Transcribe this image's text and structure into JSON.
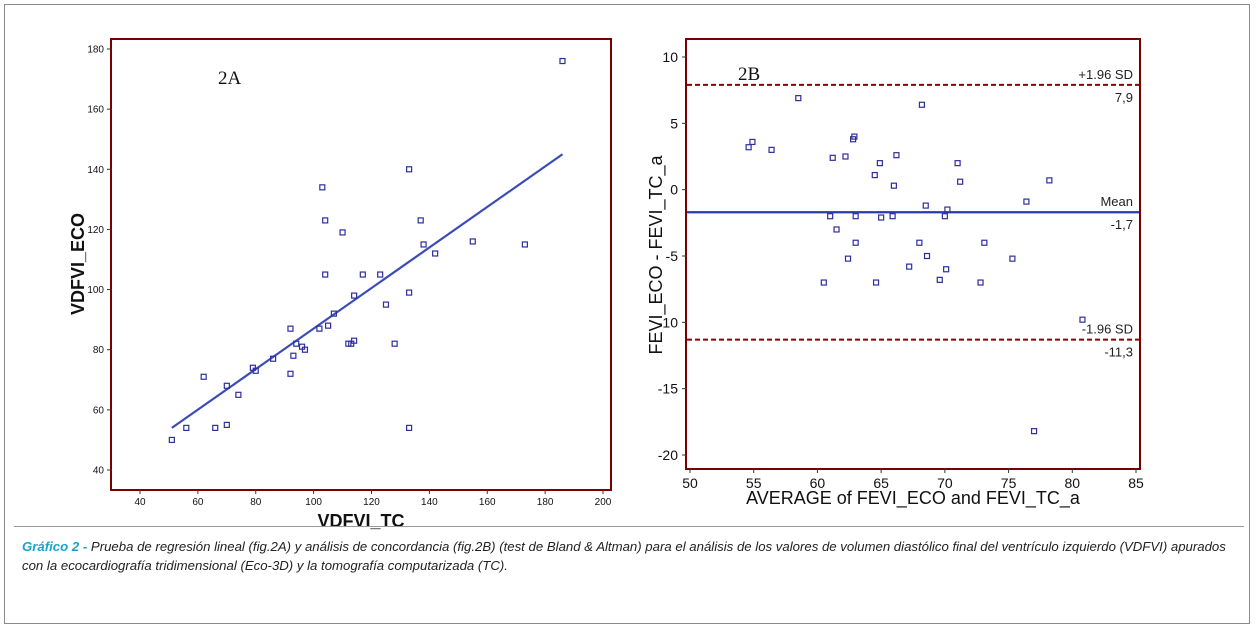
{
  "chart_data": [
    {
      "id": "A",
      "type": "scatter",
      "panel_label": "2A",
      "xlabel": "VDFVI_TC",
      "ylabel": "VDFVI_ECO",
      "xlim": [
        40,
        200
      ],
      "ylim": [
        40,
        180
      ],
      "xticks": [
        40,
        60,
        80,
        100,
        120,
        140,
        160,
        180,
        200
      ],
      "yticks": [
        40,
        60,
        80,
        100,
        120,
        140,
        160,
        180
      ],
      "regression_line": {
        "x": [
          51,
          186
        ],
        "y": [
          54,
          145
        ]
      },
      "points": [
        [
          51,
          50
        ],
        [
          56,
          54
        ],
        [
          62,
          71
        ],
        [
          66,
          54
        ],
        [
          70,
          55
        ],
        [
          70,
          68
        ],
        [
          74,
          65
        ],
        [
          79,
          74
        ],
        [
          80,
          73
        ],
        [
          86,
          77
        ],
        [
          92,
          87
        ],
        [
          92,
          72
        ],
        [
          93,
          78
        ],
        [
          94,
          82
        ],
        [
          96,
          81
        ],
        [
          97,
          80
        ],
        [
          102,
          87
        ],
        [
          103,
          134
        ],
        [
          104,
          105
        ],
        [
          104,
          123
        ],
        [
          105,
          88
        ],
        [
          107,
          92
        ],
        [
          110,
          119
        ],
        [
          112,
          82
        ],
        [
          113,
          82
        ],
        [
          114,
          83
        ],
        [
          114,
          98
        ],
        [
          117,
          105
        ],
        [
          123,
          105
        ],
        [
          125,
          95
        ],
        [
          128,
          82
        ],
        [
          133,
          140
        ],
        [
          133,
          99
        ],
        [
          133,
          54
        ],
        [
          137,
          123
        ],
        [
          138,
          115
        ],
        [
          142,
          112
        ],
        [
          155,
          116
        ],
        [
          173,
          115
        ],
        [
          186,
          176
        ]
      ],
      "colors": {
        "points": "#2e2e9e",
        "line": "#3b4bb8",
        "frame": "#7a0000"
      }
    },
    {
      "id": "B",
      "type": "scatter",
      "panel_label": "2B",
      "xlabel": "AVERAGE of FEVI_ECO and FEVI_TC_a",
      "ylabel": "FEVI_ECO - FEVI_TC_a",
      "xlim": [
        50,
        85
      ],
      "ylim": [
        -20,
        10
      ],
      "xticks": [
        50,
        55,
        60,
        65,
        70,
        75,
        80,
        85
      ],
      "yticks": [
        -20,
        -15,
        -10,
        -5,
        0,
        5,
        10
      ],
      "reference_lines": [
        {
          "name": "+1.96 SD",
          "value": 7.9,
          "value_label": "7,9",
          "style": "dashed",
          "color": "#8b0000"
        },
        {
          "name": "Mean",
          "value": -1.7,
          "value_label": "-1,7",
          "style": "solid",
          "color": "#2b3aa6"
        },
        {
          "name": "-1.96 SD",
          "value": -11.3,
          "value_label": "-11,3",
          "style": "dashed",
          "color": "#8b0000"
        }
      ],
      "points": [
        [
          54.6,
          3.2
        ],
        [
          54.9,
          3.6
        ],
        [
          56.4,
          3.0
        ],
        [
          58.5,
          6.9
        ],
        [
          60.5,
          -7.0
        ],
        [
          61.0,
          -2.0
        ],
        [
          61.2,
          2.4
        ],
        [
          61.5,
          -3.0
        ],
        [
          62.2,
          2.5
        ],
        [
          62.4,
          -5.2
        ],
        [
          62.8,
          3.8
        ],
        [
          62.9,
          4.0
        ],
        [
          63.0,
          -2.0
        ],
        [
          63.0,
          -4.0
        ],
        [
          64.5,
          1.1
        ],
        [
          64.6,
          -7.0
        ],
        [
          64.9,
          2.0
        ],
        [
          65.0,
          -2.1
        ],
        [
          65.9,
          -2.0
        ],
        [
          66.0,
          0.3
        ],
        [
          66.2,
          2.6
        ],
        [
          67.2,
          -5.8
        ],
        [
          68.2,
          6.4
        ],
        [
          68.0,
          -4.0
        ],
        [
          68.5,
          -1.2
        ],
        [
          68.6,
          -5.0
        ],
        [
          69.6,
          -6.8
        ],
        [
          70.0,
          -2.0
        ],
        [
          70.1,
          -6.0
        ],
        [
          70.2,
          -1.5
        ],
        [
          71.0,
          2.0
        ],
        [
          71.2,
          0.6
        ],
        [
          72.8,
          -7.0
        ],
        [
          73.1,
          -4.0
        ],
        [
          75.3,
          -5.2
        ],
        [
          76.4,
          -0.9
        ],
        [
          77.0,
          -18.2
        ],
        [
          78.2,
          0.7
        ],
        [
          80.8,
          -9.8
        ]
      ],
      "colors": {
        "points": "#2e2e9e",
        "frame": "#7a0000"
      }
    }
  ],
  "caption": {
    "label": "Gráfico 2 -",
    "text": "Prueba de regresión lineal (fig.2A) y análisis de concordancia (fig.2B) (test de Bland & Altman) para el análisis de los valores de volumen diastólico final del ventrículo izquierdo (VDFVI) apurados con la ecocardiografía tridimensional (Eco-3D) y la tomografía computarizada (TC)."
  }
}
